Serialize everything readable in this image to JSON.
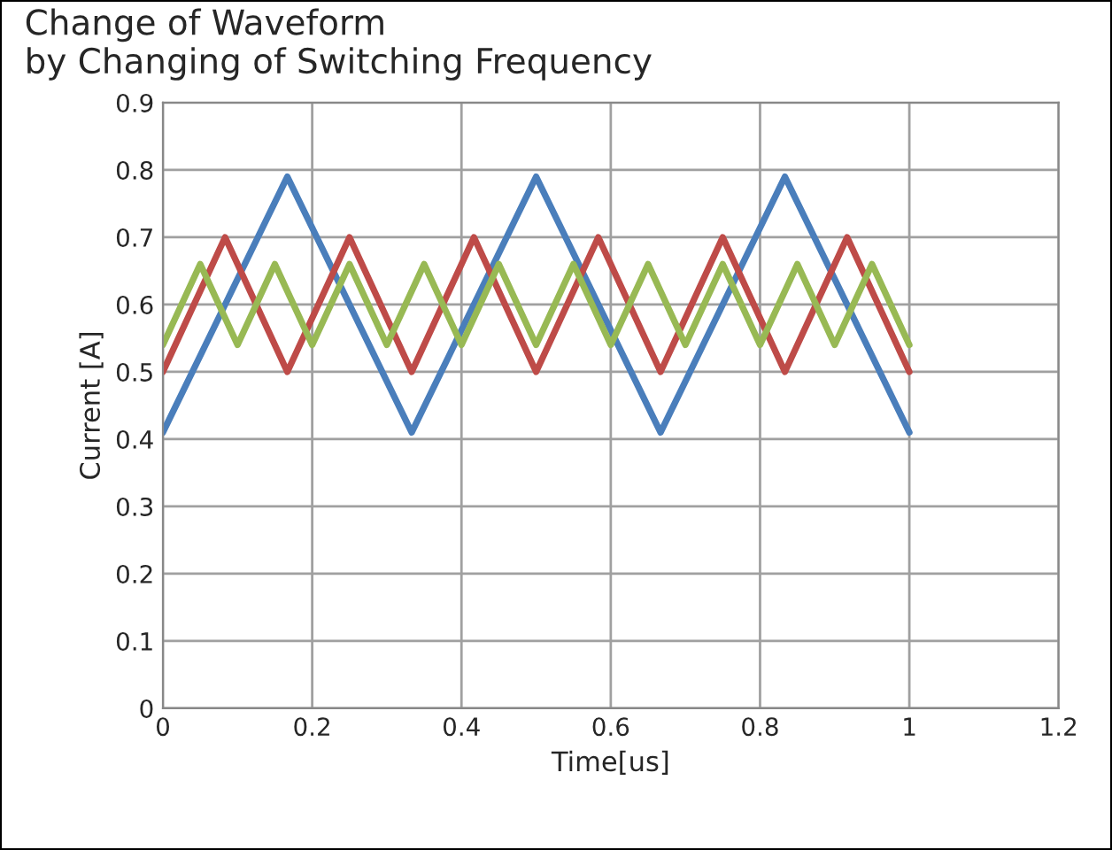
{
  "chart_data": {
    "type": "line",
    "title": "Change of Waveform\nby Changing of Switching Frequency",
    "xlabel": "Time[us]",
    "ylabel": "Current [A]",
    "series": [
      {
        "color": "#4a7ebb",
        "x": [
          0,
          0.1667,
          0.3333,
          0.5,
          0.6667,
          0.8333,
          1
        ],
        "values": [
          0.41,
          0.79,
          0.41,
          0.79,
          0.41,
          0.79,
          0.41
        ]
      },
      {
        "color": "#be4b48",
        "x": [
          0,
          0.0833,
          0.1667,
          0.25,
          0.3333,
          0.4167,
          0.5,
          0.5833,
          0.6667,
          0.75,
          0.8333,
          0.9167,
          1
        ],
        "values": [
          0.5,
          0.7,
          0.5,
          0.7,
          0.5,
          0.7,
          0.5,
          0.7,
          0.5,
          0.7,
          0.5,
          0.7,
          0.5
        ]
      },
      {
        "color": "#98b954",
        "x": [
          0,
          0.05,
          0.1,
          0.15,
          0.2,
          0.25,
          0.3,
          0.35,
          0.4,
          0.45,
          0.5,
          0.55,
          0.6,
          0.65,
          0.7,
          0.75,
          0.8,
          0.85,
          0.9,
          0.95,
          1
        ],
        "values": [
          0.54,
          0.66,
          0.54,
          0.66,
          0.54,
          0.66,
          0.54,
          0.66,
          0.54,
          0.66,
          0.54,
          0.66,
          0.54,
          0.66,
          0.54,
          0.66,
          0.54,
          0.66,
          0.54,
          0.66,
          0.54
        ]
      }
    ],
    "xlim": [
      0,
      1.2
    ],
    "xticks": [
      0,
      0.2,
      0.4,
      0.6,
      0.8,
      1,
      1.2
    ],
    "ylim": [
      0,
      0.9
    ],
    "yticks": [
      0,
      0.1,
      0.2,
      0.3,
      0.4,
      0.5,
      0.6,
      0.7,
      0.8,
      0.9
    ],
    "grid": true,
    "marker": "none",
    "line_style": "solid"
  }
}
